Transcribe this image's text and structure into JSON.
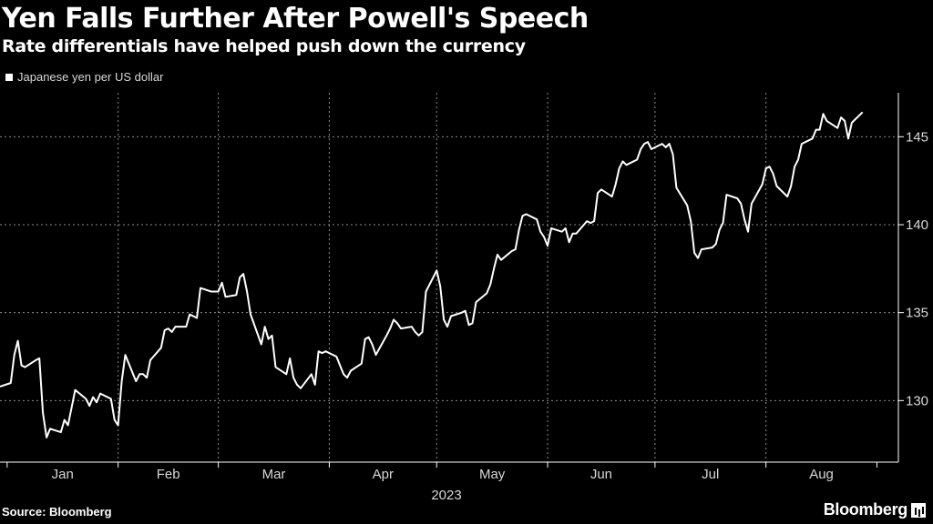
{
  "title": "Yen Falls Further After Powell's Speech",
  "subtitle": "Rate differentials have helped push down the currency",
  "footer": {
    "source": "Source: Bloomberg",
    "logo": "Bloomberg"
  },
  "chart_data": {
    "type": "line",
    "title": "Yen Falls Further After Powell's Speech",
    "subtitle": "Rate differentials have helped push down the currency",
    "xlabel": "2023",
    "ylabel": "",
    "ylim": [
      126.5,
      147.5
    ],
    "yticks": [
      130,
      135,
      140,
      145
    ],
    "ytick_labels": [
      "130",
      "135",
      "140",
      "145"
    ],
    "xticks": [
      "Jan",
      "Feb",
      "Mar",
      "Apr",
      "May",
      "Jun",
      "Jul",
      "Aug"
    ],
    "legend": "top-left",
    "grid": true,
    "series": [
      {
        "name": "Japanese yen per US dollar",
        "color": "#ffffff",
        "x": [
          "2022-12-30",
          "2023-01-02",
          "2023-01-03",
          "2023-01-04",
          "2023-01-05",
          "2023-01-06",
          "2023-01-09",
          "2023-01-10",
          "2023-01-11",
          "2023-01-12",
          "2023-01-13",
          "2023-01-16",
          "2023-01-17",
          "2023-01-18",
          "2023-01-19",
          "2023-01-20",
          "2023-01-23",
          "2023-01-24",
          "2023-01-25",
          "2023-01-26",
          "2023-01-27",
          "2023-01-30",
          "2023-01-31",
          "2023-02-01",
          "2023-02-02",
          "2023-02-03",
          "2023-02-06",
          "2023-02-07",
          "2023-02-08",
          "2023-02-09",
          "2023-02-10",
          "2023-02-13",
          "2023-02-14",
          "2023-02-15",
          "2023-02-16",
          "2023-02-17",
          "2023-02-20",
          "2023-02-21",
          "2023-02-22",
          "2023-02-23",
          "2023-02-24",
          "2023-02-27",
          "2023-02-28",
          "2023-03-01",
          "2023-03-02",
          "2023-03-03",
          "2023-03-06",
          "2023-03-07",
          "2023-03-08",
          "2023-03-09",
          "2023-03-10",
          "2023-03-13",
          "2023-03-14",
          "2023-03-15",
          "2023-03-16",
          "2023-03-17",
          "2023-03-20",
          "2023-03-21",
          "2023-03-22",
          "2023-03-23",
          "2023-03-24",
          "2023-03-27",
          "2023-03-28",
          "2023-03-29",
          "2023-03-30",
          "2023-03-31",
          "2023-04-03",
          "2023-04-04",
          "2023-04-05",
          "2023-04-06",
          "2023-04-07",
          "2023-04-10",
          "2023-04-11",
          "2023-04-12",
          "2023-04-13",
          "2023-04-14",
          "2023-04-17",
          "2023-04-18",
          "2023-04-19",
          "2023-04-20",
          "2023-04-21",
          "2023-04-24",
          "2023-04-25",
          "2023-04-26",
          "2023-04-27",
          "2023-04-28",
          "2023-05-01",
          "2023-05-02",
          "2023-05-03",
          "2023-05-04",
          "2023-05-05",
          "2023-05-08",
          "2023-05-09",
          "2023-05-10",
          "2023-05-11",
          "2023-05-12",
          "2023-05-15",
          "2023-05-16",
          "2023-05-17",
          "2023-05-18",
          "2023-05-19",
          "2023-05-22",
          "2023-05-23",
          "2023-05-24",
          "2023-05-25",
          "2023-05-26",
          "2023-05-29",
          "2023-05-30",
          "2023-05-31",
          "2023-06-01",
          "2023-06-02",
          "2023-06-05",
          "2023-06-06",
          "2023-06-07",
          "2023-06-08",
          "2023-06-09",
          "2023-06-12",
          "2023-06-13",
          "2023-06-14",
          "2023-06-15",
          "2023-06-16",
          "2023-06-19",
          "2023-06-20",
          "2023-06-21",
          "2023-06-22",
          "2023-06-23",
          "2023-06-26",
          "2023-06-27",
          "2023-06-28",
          "2023-06-29",
          "2023-06-30",
          "2023-07-03",
          "2023-07-04",
          "2023-07-05",
          "2023-07-06",
          "2023-07-07",
          "2023-07-10",
          "2023-07-11",
          "2023-07-12",
          "2023-07-13",
          "2023-07-14",
          "2023-07-17",
          "2023-07-18",
          "2023-07-19",
          "2023-07-20",
          "2023-07-21",
          "2023-07-24",
          "2023-07-25",
          "2023-07-26",
          "2023-07-27",
          "2023-07-28",
          "2023-07-31",
          "2023-08-01",
          "2023-08-02",
          "2023-08-03",
          "2023-08-04",
          "2023-08-07",
          "2023-08-08",
          "2023-08-09",
          "2023-08-10",
          "2023-08-11",
          "2023-08-14",
          "2023-08-15",
          "2023-08-16",
          "2023-08-17",
          "2023-08-18",
          "2023-08-21",
          "2023-08-22",
          "2023-08-23",
          "2023-08-24",
          "2023-08-25",
          "2023-08-28"
        ],
        "values": [
          130.8,
          131.0,
          132.6,
          133.4,
          132.0,
          131.9,
          132.3,
          132.4,
          129.3,
          127.9,
          128.4,
          128.2,
          128.9,
          128.6,
          129.6,
          130.6,
          130.1,
          129.7,
          130.2,
          129.9,
          130.4,
          130.1,
          128.9,
          128.6,
          131.1,
          132.6,
          131.1,
          131.5,
          131.5,
          131.3,
          132.3,
          133.0,
          134.0,
          134.1,
          133.9,
          134.2,
          134.2,
          134.9,
          134.8,
          134.7,
          136.4,
          136.2,
          136.2,
          136.2,
          136.7,
          135.9,
          136.0,
          137.0,
          137.2,
          136.2,
          134.9,
          133.2,
          134.2,
          133.5,
          133.7,
          131.9,
          131.5,
          132.4,
          131.3,
          130.9,
          130.7,
          131.5,
          130.9,
          132.8,
          132.7,
          132.8,
          132.5,
          132.0,
          131.5,
          131.3,
          131.7,
          132.1,
          133.5,
          133.6,
          133.2,
          132.6,
          133.7,
          134.1,
          134.6,
          134.4,
          134.1,
          134.2,
          133.9,
          133.7,
          133.9,
          136.2,
          137.4,
          136.5,
          134.6,
          134.2,
          134.8,
          135.0,
          135.1,
          134.3,
          134.4,
          135.6,
          136.1,
          136.6,
          137.5,
          138.3,
          138.0,
          138.5,
          138.6,
          139.7,
          140.5,
          140.6,
          140.3,
          139.6,
          139.3,
          138.8,
          139.8,
          139.6,
          139.8,
          139.0,
          139.5,
          139.5,
          140.2,
          140.1,
          140.2,
          141.8,
          142.0,
          141.6,
          142.3,
          143.2,
          143.6,
          143.4,
          143.7,
          144.3,
          144.6,
          144.7,
          144.3,
          144.6,
          144.4,
          144.6,
          144.0,
          142.1,
          141.1,
          140.2,
          138.4,
          138.1,
          138.6,
          138.7,
          138.9,
          139.7,
          140.1,
          141.7,
          141.5,
          141.2,
          140.3,
          139.6,
          141.2,
          142.3,
          143.2,
          143.3,
          142.9,
          142.2,
          141.6,
          142.2,
          143.3,
          143.7,
          144.6,
          144.9,
          145.4,
          145.4,
          146.3,
          145.9,
          145.5,
          146.1,
          145.9,
          144.9,
          145.8,
          146.4
        ]
      }
    ]
  }
}
